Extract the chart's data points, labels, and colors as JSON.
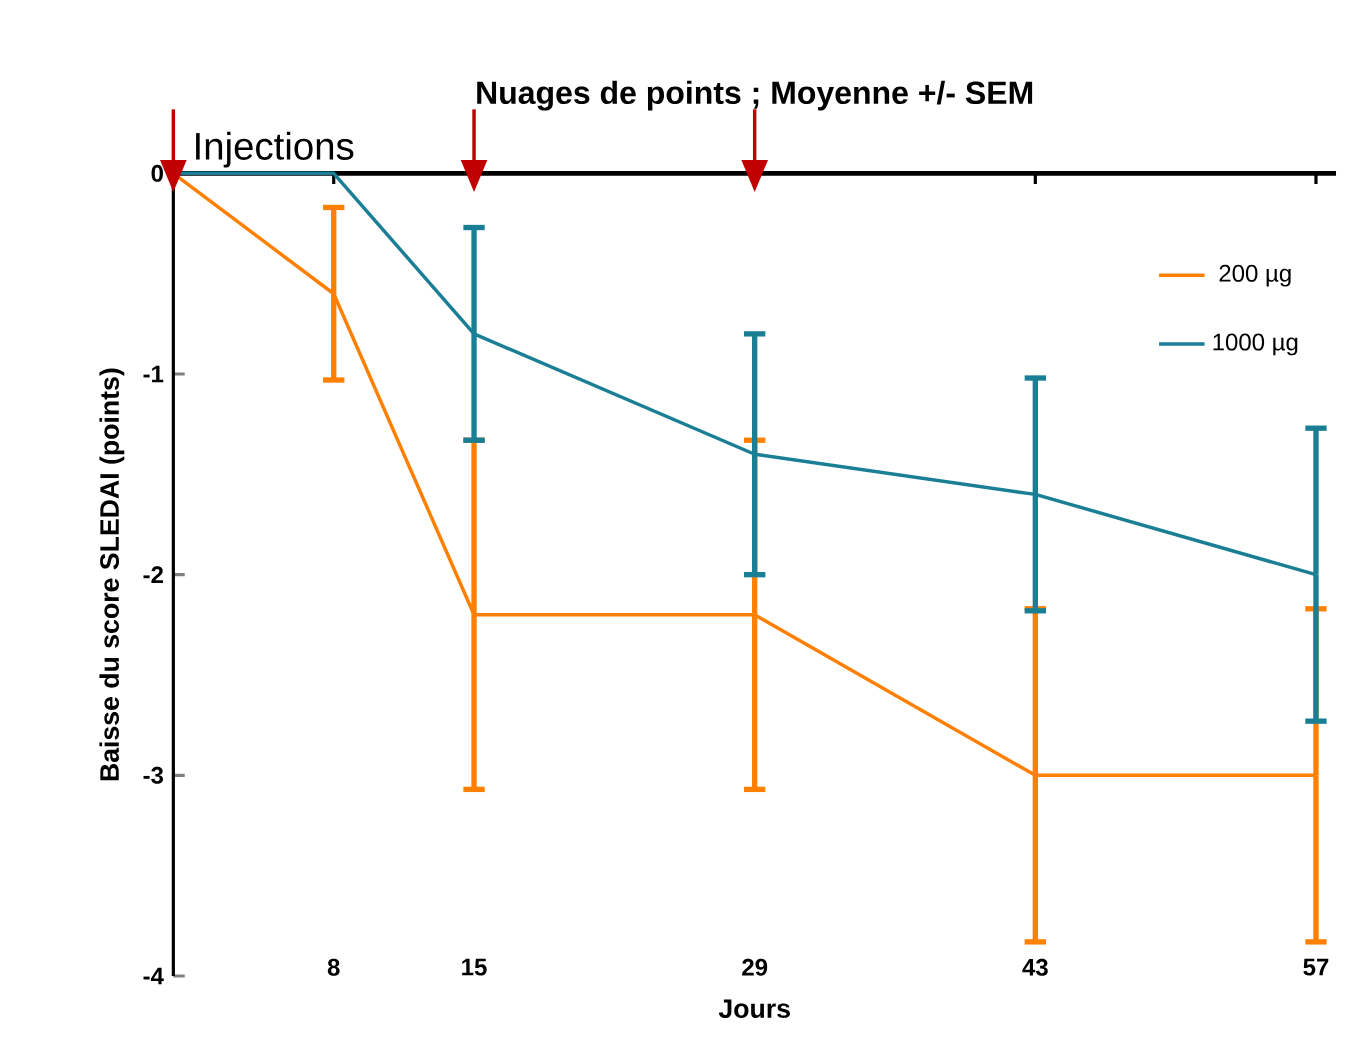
{
  "chart_data": {
    "type": "line",
    "title": "Nuages de points ; Moyenne +/- SEM",
    "xlabel": "Jours",
    "ylabel": "Baisse du score SLEDAI (points)",
    "x": [
      0,
      8,
      15,
      29,
      43,
      57
    ],
    "series": [
      {
        "name": "200 µg",
        "color": "#ff8000",
        "values": [
          0,
          -0.6,
          -2.2,
          -2.2,
          -3.0,
          -3.0
        ],
        "errors": [
          null,
          0.43,
          0.87,
          0.87,
          0.83,
          0.83
        ]
      },
      {
        "name": "1000 µg",
        "color": "#1a7f94",
        "values": [
          0,
          0,
          -0.8,
          -1.4,
          -1.6,
          -2.0
        ],
        "errors": [
          null,
          null,
          0.53,
          0.6,
          0.58,
          0.73
        ]
      },
      {
        "type": "scatter",
        "marker": "triangle",
        "color": "#c00000",
        "x": [
          0,
          15,
          29
        ],
        "values": [
          0,
          0,
          0
        ]
      }
    ],
    "annotations": [
      {
        "text": "Injections",
        "x": 0,
        "y": 0
      }
    ],
    "xlim": [
      0,
      58
    ],
    "ylim": [
      -4,
      0
    ],
    "xticks": [
      8,
      15,
      29,
      43,
      57
    ],
    "yticks": [
      0,
      -1,
      -2,
      -3,
      -4
    ],
    "legend": "top right",
    "grid": false
  }
}
